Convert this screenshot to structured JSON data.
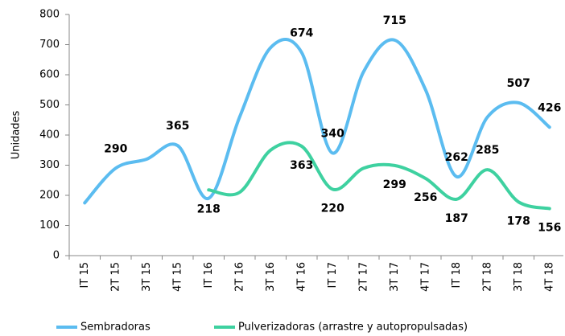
{
  "chart_data": {
    "type": "line",
    "y_label": "Unidades",
    "categories": [
      "IT 15",
      "2T 15",
      "3T 15",
      "4T 15",
      "IT 16",
      "2T 16",
      "3T 16",
      "4T 16",
      "IT 17",
      "2T 17",
      "3T 17",
      "4T 17",
      "IT 18",
      "2T 18",
      "3T 18",
      "4T 18"
    ],
    "series": [
      {
        "name": "Sembradoras",
        "color": "#5bbcf0",
        "values": [
          175,
          290,
          320,
          365,
          190,
          460,
          690,
          674,
          340,
          610,
          715,
          550,
          262,
          460,
          507,
          426
        ],
        "value_labels": [
          null,
          "290",
          null,
          "365",
          null,
          null,
          null,
          "674",
          "340",
          null,
          "715",
          null,
          "262",
          null,
          "507",
          "426"
        ]
      },
      {
        "name": "Pulverizadoras (arrastre y autopropulsadas)",
        "color": "#3ed1a0",
        "values": [
          null,
          null,
          null,
          null,
          218,
          210,
          350,
          363,
          220,
          290,
          299,
          256,
          187,
          285,
          178,
          156
        ],
        "value_labels": [
          null,
          null,
          null,
          null,
          "218",
          null,
          null,
          "363",
          "220",
          null,
          "299",
          "256",
          "187",
          "285",
          "178",
          "156"
        ]
      }
    ],
    "ylim": [
      0,
      800
    ],
    "yticks": [
      0,
      100,
      200,
      300,
      400,
      500,
      600,
      700,
      800
    ],
    "smooth": true
  }
}
